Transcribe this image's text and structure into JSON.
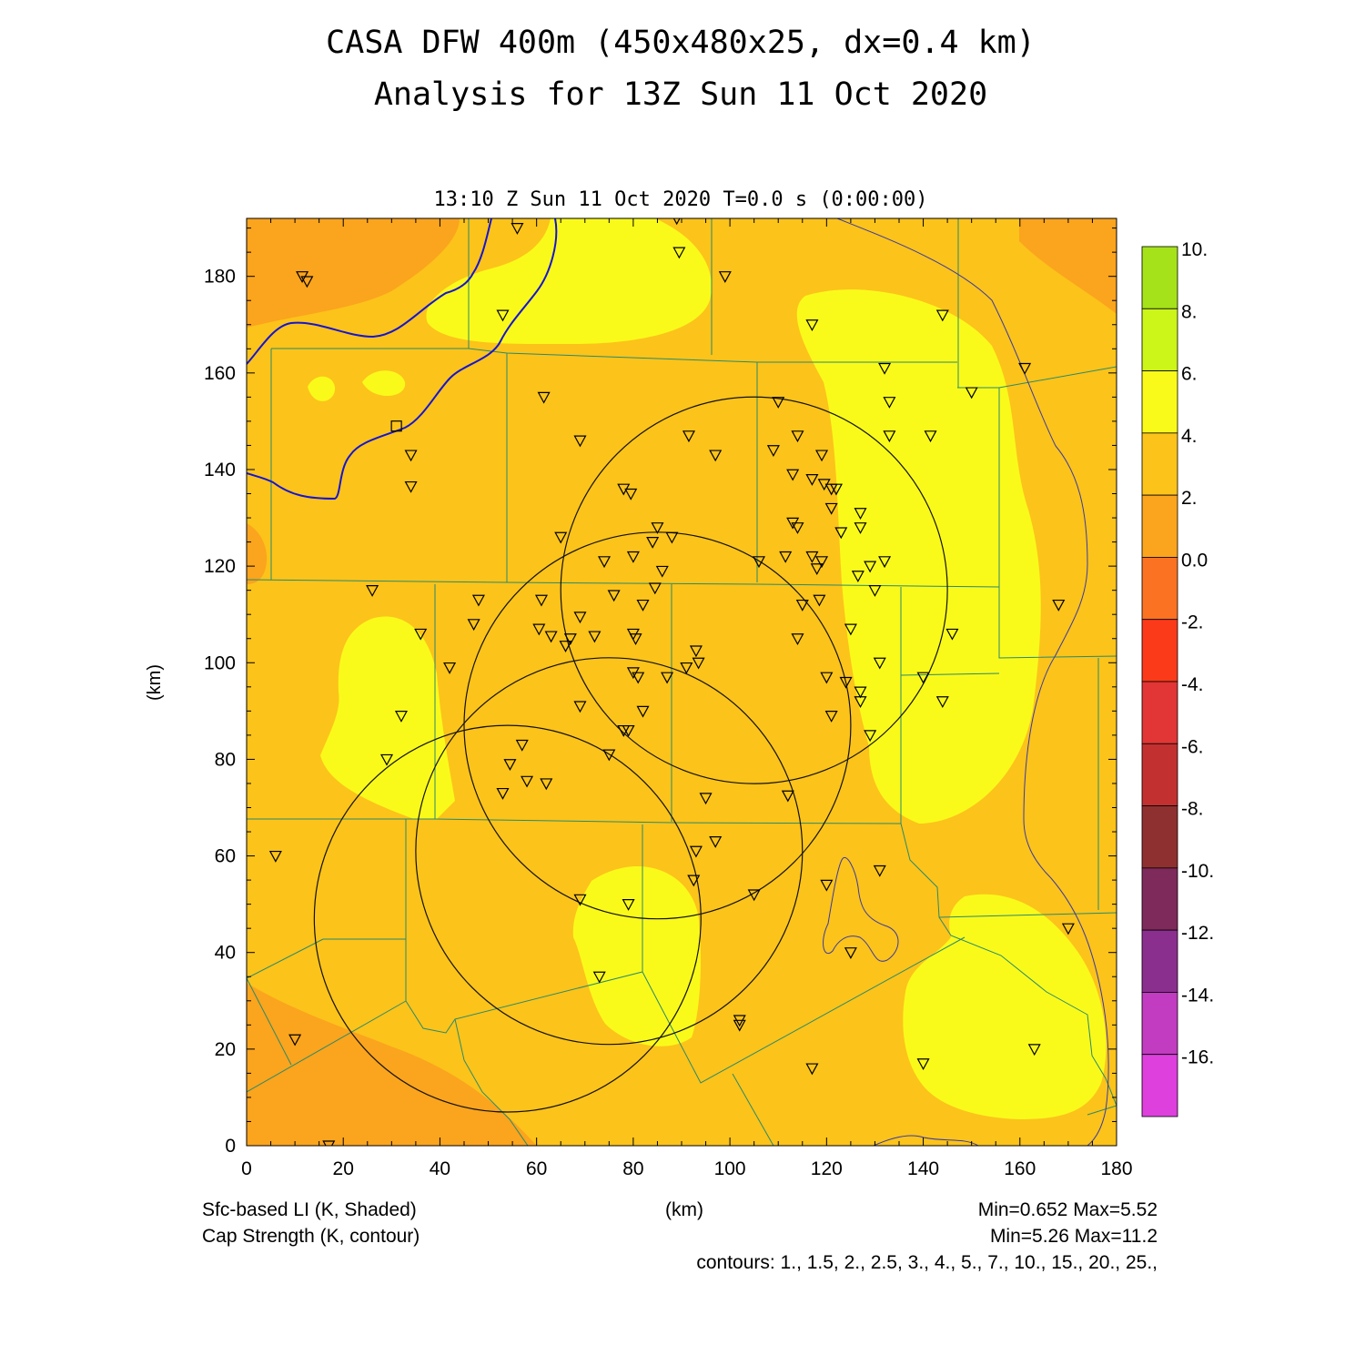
{
  "title_line1": "CASA DFW 400m (450x480x25, dx=0.4 km)",
  "title_line2": "Analysis for 13Z Sun 11 Oct 2020",
  "subtitle": "13:10 Z Sun 11 Oct 2020    T=0.0 s (0:00:00)",
  "footer": {
    "left1": "Sfc-based LI (K, Shaded)",
    "left2": "Cap Strength (K, contour)",
    "center": "(km)",
    "right1": "Min=0.652 Max=5.52",
    "right2": "Min=5.26 Max=11.2",
    "contours": "contours: 1., 1.5, 2., 2.5, 3., 4., 5., 7., 10., 15., 20., 25.,"
  },
  "colors": {
    "band_0_2": "#fba41d",
    "band_2_4": "#fcc31a",
    "band_4_6": "#fafa1a",
    "river": "#1515d0",
    "county": "#2a8a6a",
    "contour": "#3a3aa0",
    "radar": "#111111"
  },
  "chart_data": {
    "type": "heatmap",
    "xlabel": "(km)",
    "ylabel": "(km)",
    "xlim": [
      0,
      180
    ],
    "ylim": [
      0,
      192
    ],
    "xticks": [
      "0",
      "20",
      "40",
      "60",
      "80",
      "100",
      "120",
      "140",
      "160",
      "180"
    ],
    "yticks": [
      "0",
      "20",
      "40",
      "60",
      "80",
      "100",
      "120",
      "140",
      "160",
      "180"
    ],
    "colorbar": {
      "labels": [
        "10.",
        "8.",
        "6.",
        "4.",
        "2.",
        "0.0",
        "-2.",
        "-4.",
        "-6.",
        "-8.",
        "-10.",
        "-12.",
        "-14.",
        "-16."
      ],
      "colors": [
        "#a6e21a",
        "#ccf51a",
        "#fafa1a",
        "#fcc31a",
        "#fba41d",
        "#fb7222",
        "#fb3a1a",
        "#e23535",
        "#c23030",
        "#8e3030",
        "#7e2a5a",
        "#8b2f8f",
        "#c13cc1",
        "#dd40dd"
      ]
    },
    "radars": [
      {
        "cx": 105,
        "cy": 115,
        "r": 40
      },
      {
        "cx": 85,
        "cy": 87,
        "r": 40
      },
      {
        "cx": 75,
        "cy": 61,
        "r": 40
      },
      {
        "cx": 54,
        "cy": 47,
        "r": 40
      }
    ],
    "stations": [
      [
        11.5,
        180
      ],
      [
        12.5,
        179
      ],
      [
        56,
        190
      ],
      [
        89,
        192
      ],
      [
        89.5,
        185
      ],
      [
        99,
        180
      ],
      [
        53,
        172
      ],
      [
        117,
        170
      ],
      [
        144,
        172
      ],
      [
        161,
        161
      ],
      [
        132,
        161
      ],
      [
        150,
        156
      ],
      [
        61.5,
        155
      ],
      [
        110,
        154
      ],
      [
        133,
        154
      ],
      [
        34,
        143
      ],
      [
        34,
        136.5
      ],
      [
        69,
        146
      ],
      [
        91.5,
        147
      ],
      [
        97,
        143
      ],
      [
        133,
        147
      ],
      [
        114,
        147
      ],
      [
        141.5,
        147
      ],
      [
        109,
        144
      ],
      [
        119,
        143
      ],
      [
        113,
        139
      ],
      [
        117,
        138
      ],
      [
        119.5,
        137
      ],
      [
        121,
        136
      ],
      [
        122,
        136
      ],
      [
        78,
        136
      ],
      [
        79.5,
        135
      ],
      [
        121,
        132
      ],
      [
        127,
        131
      ],
      [
        65,
        126
      ],
      [
        85,
        128
      ],
      [
        88,
        126
      ],
      [
        113,
        129
      ],
      [
        114,
        128
      ],
      [
        127,
        128
      ],
      [
        84,
        125
      ],
      [
        123,
        127
      ],
      [
        74,
        121
      ],
      [
        80,
        122
      ],
      [
        106,
        121
      ],
      [
        111.5,
        122
      ],
      [
        117,
        122
      ],
      [
        119,
        121
      ],
      [
        118,
        119.5
      ],
      [
        129,
        120
      ],
      [
        132,
        121
      ],
      [
        86,
        119
      ],
      [
        126.5,
        118
      ],
      [
        84.5,
        115.5
      ],
      [
        26,
        115
      ],
      [
        130,
        115
      ],
      [
        61,
        113
      ],
      [
        76,
        114
      ],
      [
        82,
        112
      ],
      [
        115,
        112
      ],
      [
        118.5,
        113
      ],
      [
        48,
        113
      ],
      [
        69,
        109.5
      ],
      [
        47,
        108
      ],
      [
        125,
        107
      ],
      [
        60.5,
        107
      ],
      [
        63,
        105.5
      ],
      [
        67,
        105
      ],
      [
        66,
        103.5
      ],
      [
        72,
        105.5
      ],
      [
        80,
        106
      ],
      [
        80.5,
        105
      ],
      [
        114,
        105
      ],
      [
        146,
        106
      ],
      [
        36,
        106
      ],
      [
        93,
        102.5
      ],
      [
        93.5,
        100
      ],
      [
        131,
        100
      ],
      [
        42,
        99
      ],
      [
        91,
        99
      ],
      [
        80,
        98
      ],
      [
        81,
        97
      ],
      [
        87,
        97
      ],
      [
        120,
        97
      ],
      [
        140,
        97
      ],
      [
        124,
        96
      ],
      [
        127,
        94
      ],
      [
        127,
        92
      ],
      [
        144,
        92
      ],
      [
        69,
        91
      ],
      [
        82,
        90
      ],
      [
        121,
        89
      ],
      [
        32,
        89
      ],
      [
        78,
        86
      ],
      [
        79,
        86
      ],
      [
        129,
        85
      ],
      [
        57,
        83
      ],
      [
        75,
        81
      ],
      [
        29,
        80
      ],
      [
        54.5,
        79
      ],
      [
        58,
        75.5
      ],
      [
        62,
        75
      ],
      [
        53,
        73
      ],
      [
        95,
        72
      ],
      [
        112,
        72.5
      ],
      [
        97,
        63
      ],
      [
        93,
        61
      ],
      [
        6,
        60
      ],
      [
        131,
        57
      ],
      [
        92.5,
        55
      ],
      [
        120,
        54
      ],
      [
        105,
        52
      ],
      [
        69,
        51
      ],
      [
        79,
        50
      ],
      [
        170,
        45
      ],
      [
        125,
        40
      ],
      [
        73,
        35
      ],
      [
        102,
        26
      ],
      [
        102,
        25
      ],
      [
        10,
        22
      ],
      [
        163,
        20
      ],
      [
        140,
        17
      ],
      [
        117,
        16
      ],
      [
        168,
        112
      ],
      [
        17,
        0
      ]
    ],
    "observation_site": [
      31,
      149
    ]
  }
}
